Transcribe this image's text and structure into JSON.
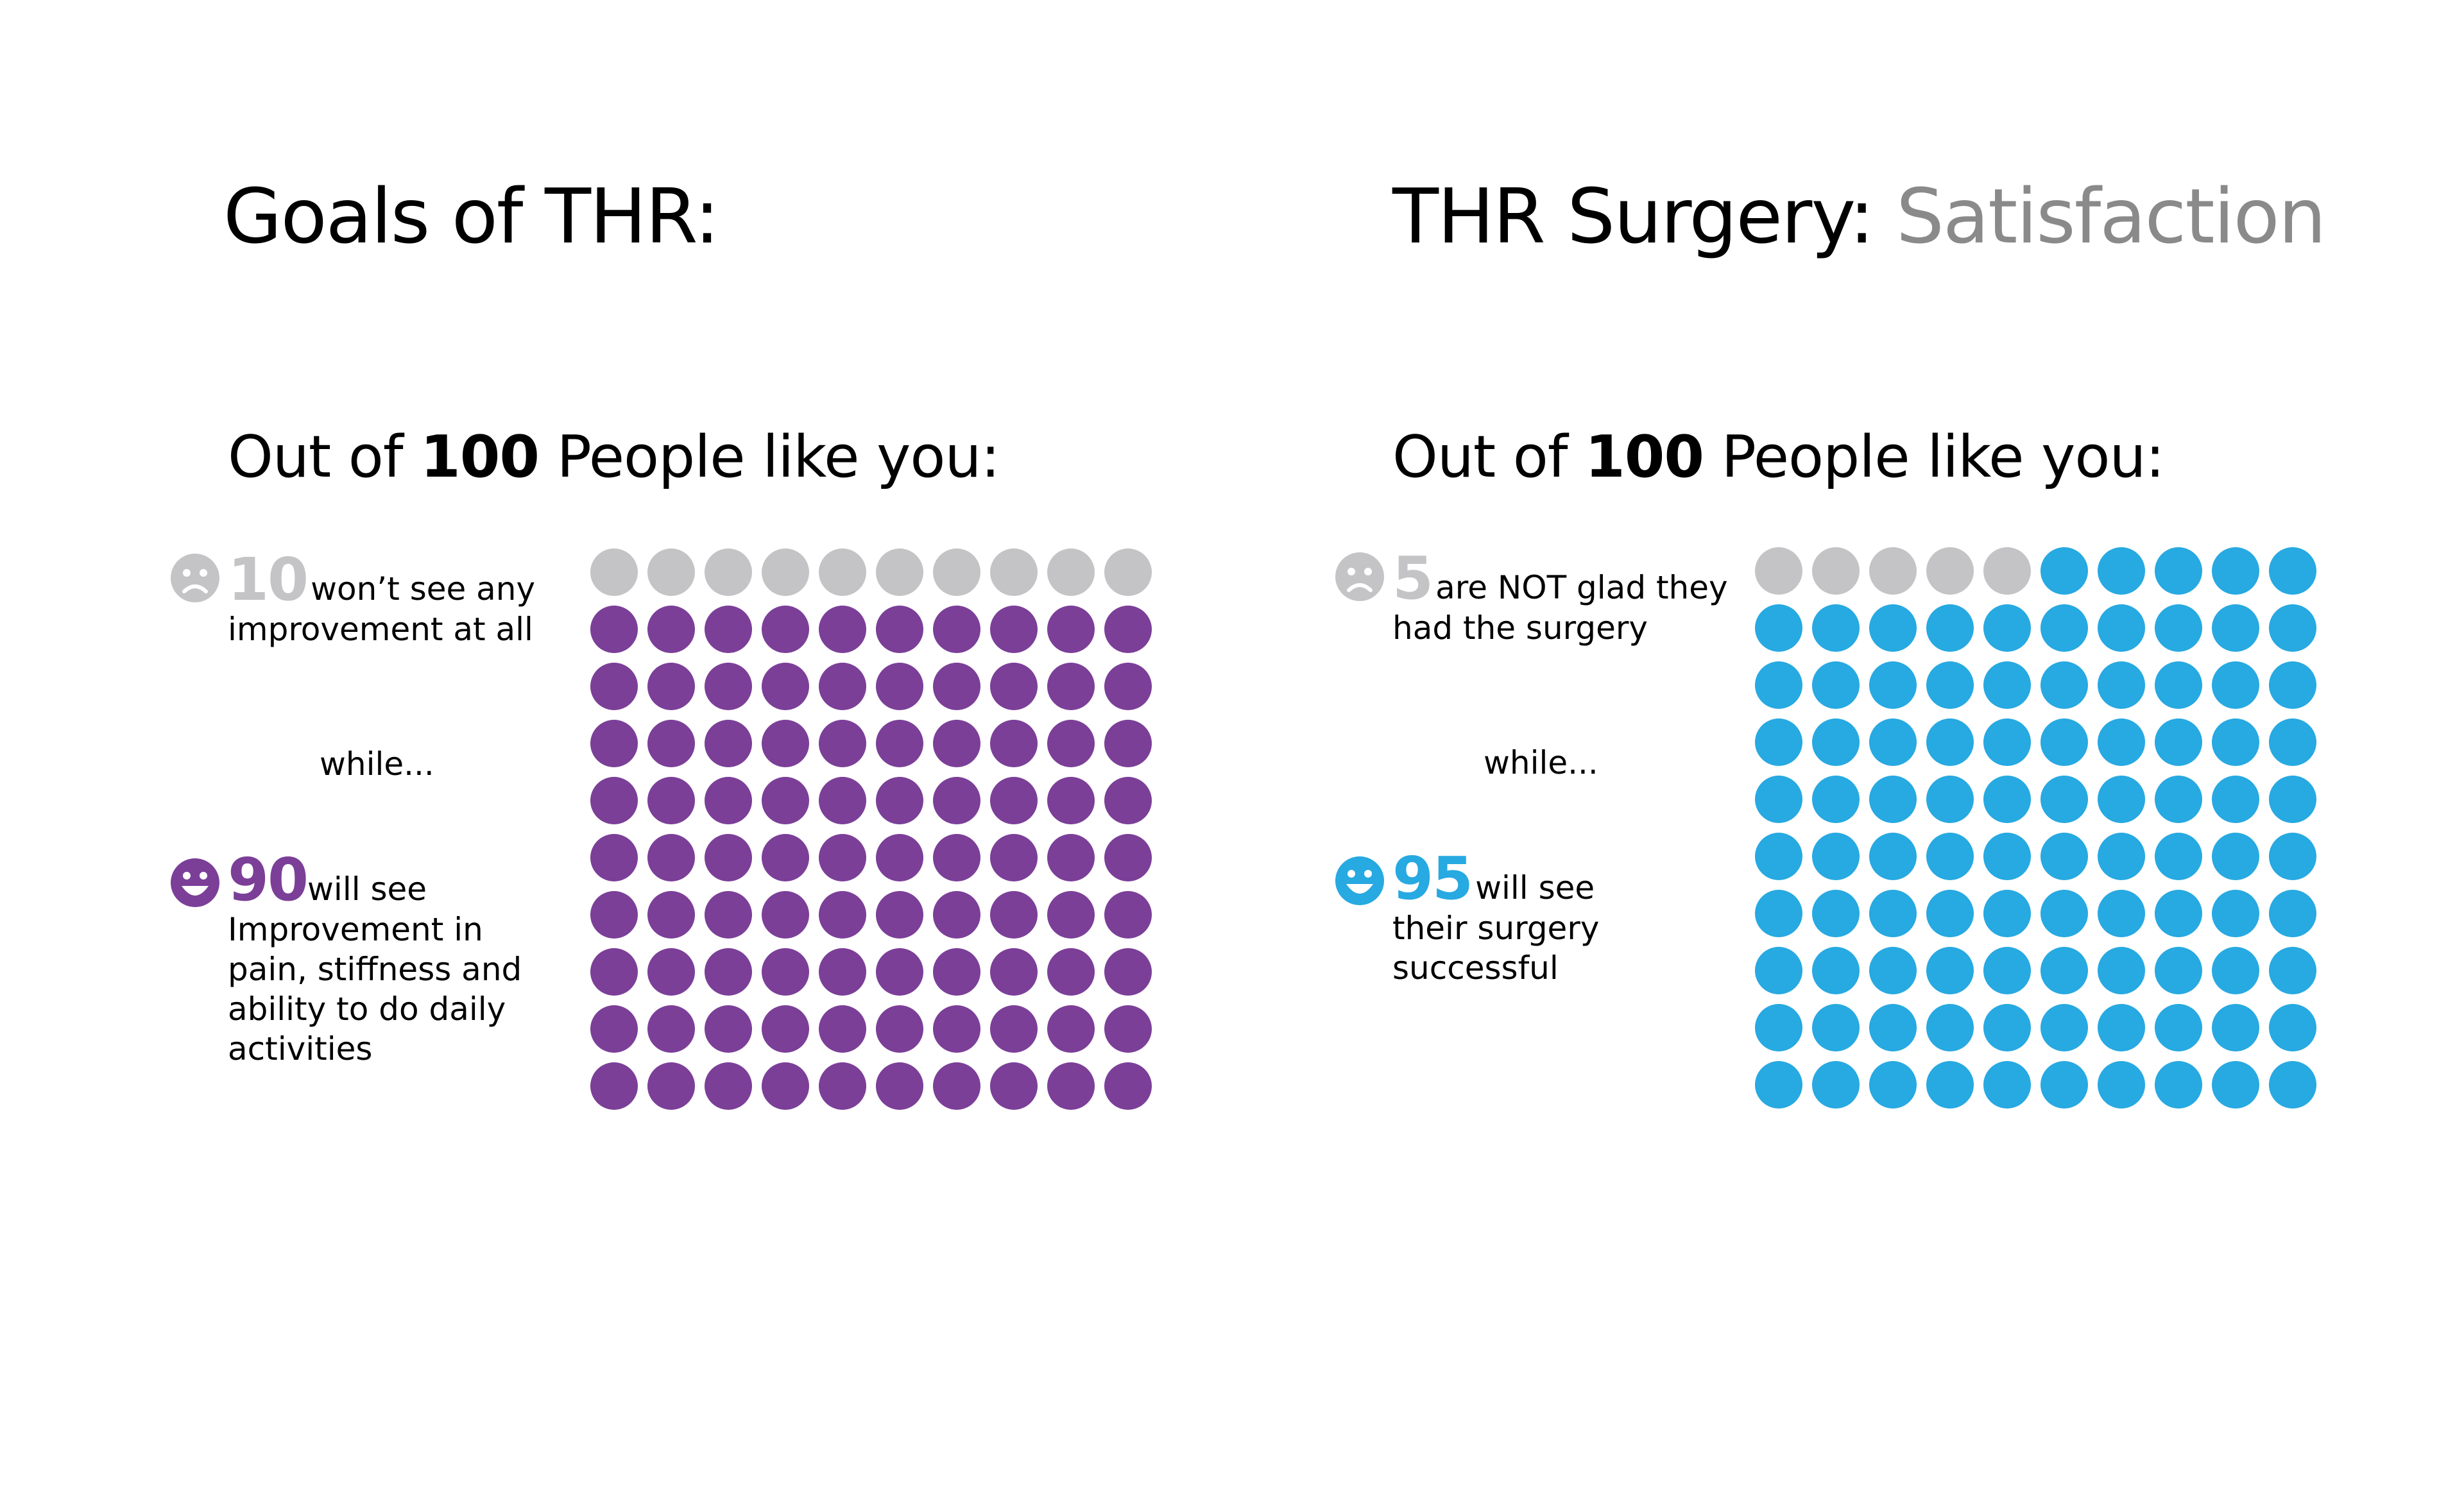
{
  "chart_data": [
    {
      "type": "waffle",
      "title": "Goals of THR:",
      "subtitle": {
        "pre": "Out of ",
        "bold": "100",
        "post": " People like you:"
      },
      "total": 100,
      "rows": 10,
      "cols": 10,
      "series": [
        {
          "name": "won't see any improvement at all",
          "value": 10,
          "color": "#c4c4c6"
        },
        {
          "name": "will see Improvement in pain, stiffness and ability to do daily activities",
          "value": 90,
          "color": "#7b3f98"
        }
      ]
    },
    {
      "type": "waffle",
      "title": "THR Surgery:",
      "title_accent": " Satisfaction",
      "subtitle": {
        "pre": "Out of ",
        "bold": "100",
        "post": " People like you:"
      },
      "total": 100,
      "rows": 10,
      "cols": 10,
      "series": [
        {
          "name": "are NOT glad they had the surgery",
          "value": 5,
          "color": "#c4c4c6"
        },
        {
          "name": "will see their surgery successful",
          "value": 95,
          "color": "#27a9e1"
        }
      ]
    }
  ],
  "left": {
    "title": "Goals of THR:",
    "subtitle_pre": "Out of ",
    "subtitle_bold": "100",
    "subtitle_post": " People like you:",
    "neg_number": "10",
    "neg_text_1": "won’t see any",
    "neg_text_2": "improvement at all",
    "while": "while...",
    "pos_number": "90",
    "pos_text_1": "will see",
    "pos_text_2": "Improvement in",
    "pos_text_3": "pain, stiffness and",
    "pos_text_4": "ability to do daily",
    "pos_text_5": "activities",
    "neg_icon": "sad-face-icon",
    "pos_icon": "happy-face-icon"
  },
  "right": {
    "title_main": "THR Surgery:",
    "title_accent": " Satisfaction",
    "subtitle_pre": "Out of ",
    "subtitle_bold": "100",
    "subtitle_post": " People like you:",
    "neg_number": "5",
    "neg_text_1": "are NOT glad they",
    "neg_text_2": "had the surgery",
    "while": "while...",
    "pos_number": "95",
    "pos_text_1": "will see",
    "pos_text_2": "their surgery",
    "pos_text_3": "successful",
    "neg_icon": "sad-face-icon",
    "pos_icon": "happy-face-icon"
  },
  "colors": {
    "neutral": "#c4c4c6",
    "purple": "#7b3f98",
    "blue": "#27a9e1",
    "accent_gray": "#8a8a8a"
  }
}
